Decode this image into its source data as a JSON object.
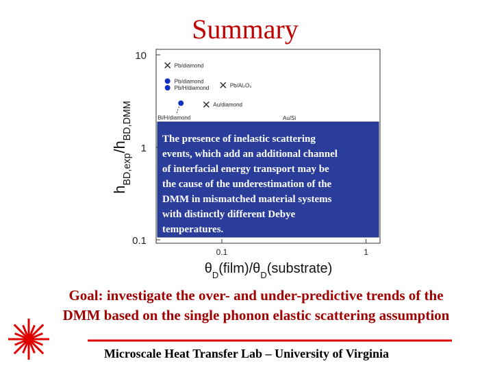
{
  "title": "Summary",
  "chart_data": {
    "type": "scatter",
    "xlabel": [
      "θ",
      "D",
      "(film)/θ",
      "D",
      "(substrate)"
    ],
    "ylabel": [
      "h",
      "BD,exp",
      "/h",
      "BD,DMM"
    ],
    "xlim": [
      0.035,
      1.25
    ],
    "ylim": [
      0.1,
      10
    ],
    "log_x": true,
    "log_y": true,
    "xticks": [
      0.1,
      1
    ],
    "yticks": [
      0.1,
      1,
      10
    ],
    "series": [
      {
        "name": "Pb/diamond",
        "marker": "x",
        "color": "#333333",
        "x": [
          0.042
        ],
        "values": [
          7.7
        ]
      },
      {
        "name": "Pb/diamond",
        "marker": "circle",
        "color": "#1030c0",
        "x": [
          0.042
        ],
        "values": [
          5.2
        ]
      },
      {
        "name": "Pb/H/diamond",
        "marker": "circle",
        "color": "#1030c0",
        "x": [
          0.042
        ],
        "values": [
          4.4
        ]
      },
      {
        "name": "Pb/Al₂O₃",
        "marker": "x",
        "color": "#333333",
        "x": [
          0.102
        ],
        "values": [
          4.7
        ]
      },
      {
        "name": "Au/diamond",
        "marker": "x",
        "color": "#333333",
        "x": [
          0.078
        ],
        "values": [
          2.9
        ]
      },
      {
        "name": "Bi/H/diamond",
        "marker": "circle",
        "color": "#1030c0",
        "x": [
          0.052
        ],
        "values": [
          3.0
        ]
      }
    ],
    "annotations": [
      "Au/Si"
    ]
  },
  "overlay": {
    "lines": [
      "The presence of  inelastic scattering",
      "events, which add an additional channel",
      "of interfacial energy transport may be",
      "the cause of the underestimation of the",
      "DMM in mismatched material systems",
      "with distinctly different Debye",
      "temperatures."
    ]
  },
  "goal": [
    "Goal: investigate the over- and under-predictive trends of the",
    "DMM based on the single phonon elastic scattering assumption"
  ],
  "footer": "Microscale Heat Transfer Lab – University of Virginia"
}
